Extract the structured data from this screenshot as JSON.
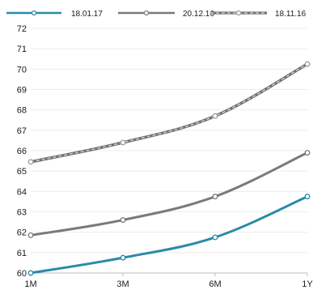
{
  "chart_data": {
    "type": "line",
    "title": "",
    "xlabel": "",
    "ylabel": "",
    "x": [
      "1M",
      "3M",
      "6M",
      "1Y"
    ],
    "ylim": [
      60,
      72
    ],
    "yticks": [
      60,
      61,
      62,
      63,
      64,
      65,
      66,
      67,
      68,
      69,
      70,
      71,
      72
    ],
    "grid": true,
    "legend_position": "top",
    "series": [
      {
        "name": "18.01.17",
        "color": "#2a8aa8",
        "style": "solid",
        "values": [
          60.0,
          60.75,
          61.75,
          63.75
        ]
      },
      {
        "name": "20.12.16",
        "color": "#7a7a7a",
        "style": "solid",
        "values": [
          61.85,
          62.6,
          63.75,
          65.9
        ]
      },
      {
        "name": "18.11.16",
        "color": "#9a9a9a",
        "style": "dashed",
        "values": [
          65.45,
          66.4,
          67.7,
          70.25
        ]
      }
    ]
  }
}
